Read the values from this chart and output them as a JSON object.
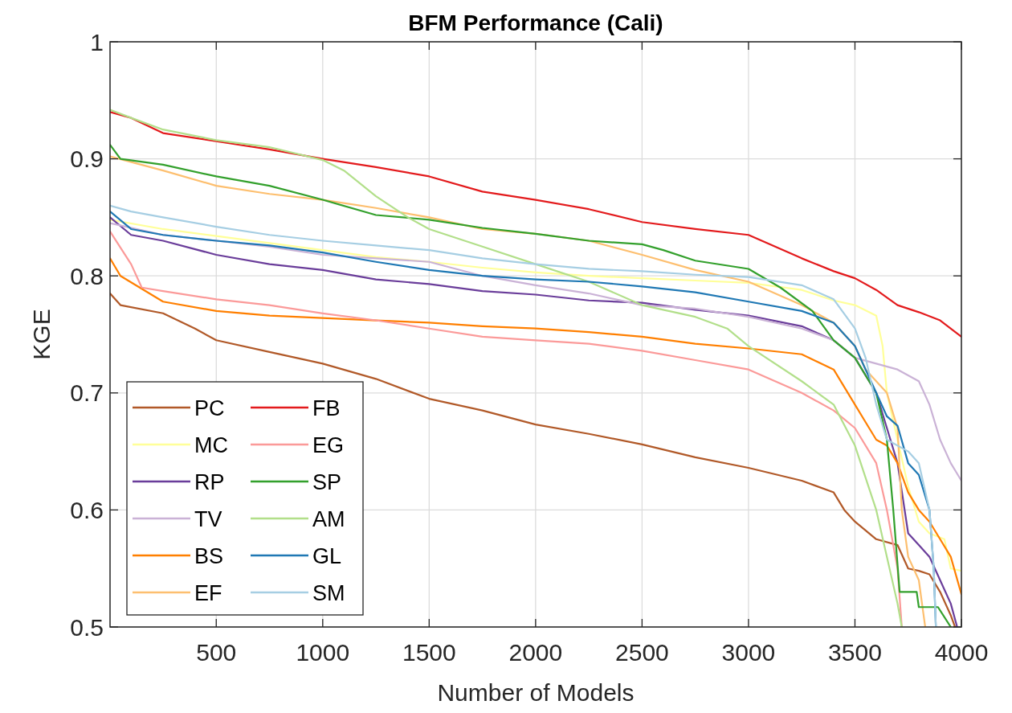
{
  "chart_data": {
    "type": "line",
    "title": "BFM Performance (Cali)",
    "xlabel": "Number of Models",
    "ylabel": "KGE",
    "xlim": [
      1,
      4000
    ],
    "xticks": [
      500,
      1000,
      1500,
      2000,
      2500,
      3000,
      3500,
      4000
    ],
    "ylim": [
      0.5,
      1
    ],
    "yticks": [
      0.5,
      0.6,
      0.7,
      0.8,
      0.9,
      1
    ],
    "grid": true,
    "legend": "bottom left",
    "line_style": "solid",
    "series": [
      {
        "name": "PC",
        "color": "#b15928",
        "x": [
          1,
          50,
          250,
          400,
          500,
          750,
          1000,
          1250,
          1500,
          1750,
          2000,
          2250,
          2500,
          2750,
          3000,
          3250,
          3400,
          3450,
          3500,
          3600,
          3700,
          3750,
          3800,
          3850,
          3900,
          3950,
          3970
        ],
        "values": [
          0.785,
          0.775,
          0.768,
          0.755,
          0.745,
          0.735,
          0.725,
          0.712,
          0.695,
          0.685,
          0.673,
          0.665,
          0.656,
          0.645,
          0.636,
          0.625,
          0.615,
          0.6,
          0.59,
          0.575,
          0.57,
          0.55,
          0.548,
          0.545,
          0.53,
          0.51,
          0.5
        ]
      },
      {
        "name": "MC",
        "color": "#ffff99",
        "x": [
          1,
          250,
          500,
          750,
          1000,
          1250,
          1500,
          1750,
          2000,
          2250,
          2500,
          2750,
          3000,
          3250,
          3400,
          3500,
          3600,
          3630,
          3650,
          3700,
          3750,
          3800,
          3850,
          3920,
          3950,
          4000
        ],
        "values": [
          0.848,
          0.84,
          0.834,
          0.828,
          0.822,
          0.816,
          0.812,
          0.807,
          0.803,
          0.8,
          0.798,
          0.796,
          0.794,
          0.788,
          0.779,
          0.775,
          0.766,
          0.74,
          0.7,
          0.66,
          0.62,
          0.59,
          0.58,
          0.575,
          0.55,
          0.548
        ]
      },
      {
        "name": "RP",
        "color": "#6a3d9a",
        "x": [
          1,
          100,
          250,
          500,
          750,
          1000,
          1250,
          1500,
          1750,
          2000,
          2250,
          2500,
          2750,
          3000,
          3250,
          3400,
          3500,
          3600,
          3650,
          3700,
          3750,
          3800,
          3850,
          3900,
          3950,
          3980
        ],
        "values": [
          0.85,
          0.835,
          0.83,
          0.818,
          0.81,
          0.805,
          0.797,
          0.793,
          0.787,
          0.784,
          0.779,
          0.777,
          0.771,
          0.766,
          0.757,
          0.745,
          0.73,
          0.7,
          0.67,
          0.64,
          0.58,
          0.57,
          0.56,
          0.54,
          0.52,
          0.5
        ]
      },
      {
        "name": "TV",
        "color": "#cab2d6",
        "x": [
          1,
          250,
          500,
          750,
          1000,
          1250,
          1500,
          1750,
          2000,
          2250,
          2500,
          2750,
          3000,
          3250,
          3400,
          3500,
          3600,
          3700,
          3800,
          3850,
          3900,
          3950,
          4000
        ],
        "values": [
          0.845,
          0.835,
          0.83,
          0.825,
          0.818,
          0.815,
          0.812,
          0.8,
          0.792,
          0.785,
          0.775,
          0.772,
          0.765,
          0.755,
          0.745,
          0.73,
          0.725,
          0.72,
          0.71,
          0.69,
          0.66,
          0.64,
          0.625
        ]
      },
      {
        "name": "BS",
        "color": "#ff7f00",
        "x": [
          1,
          50,
          250,
          500,
          750,
          1000,
          1250,
          1500,
          1750,
          2000,
          2250,
          2500,
          2750,
          3000,
          3250,
          3400,
          3500,
          3550,
          3600,
          3650,
          3700,
          3750,
          3800,
          3850,
          3900,
          3950,
          4000
        ],
        "values": [
          0.815,
          0.8,
          0.778,
          0.77,
          0.766,
          0.764,
          0.762,
          0.76,
          0.757,
          0.755,
          0.752,
          0.748,
          0.742,
          0.738,
          0.733,
          0.72,
          0.69,
          0.675,
          0.66,
          0.655,
          0.64,
          0.615,
          0.6,
          0.59,
          0.575,
          0.56,
          0.528
        ]
      },
      {
        "name": "EF",
        "color": "#fdbf6f",
        "x": [
          1,
          250,
          500,
          750,
          1000,
          1250,
          1500,
          1750,
          2000,
          2250,
          2500,
          2750,
          3000,
          3250,
          3400,
          3500,
          3550,
          3600,
          3650,
          3700,
          3720,
          3750,
          3800,
          3830
        ],
        "values": [
          0.902,
          0.89,
          0.877,
          0.87,
          0.865,
          0.858,
          0.85,
          0.84,
          0.836,
          0.83,
          0.818,
          0.805,
          0.795,
          0.775,
          0.76,
          0.74,
          0.72,
          0.71,
          0.7,
          0.67,
          0.6,
          0.56,
          0.54,
          0.5
        ]
      },
      {
        "name": "FB",
        "color": "#e31a1c",
        "x": [
          1,
          100,
          250,
          500,
          750,
          1000,
          1250,
          1500,
          1750,
          2000,
          2250,
          2500,
          2750,
          3000,
          3250,
          3400,
          3500,
          3600,
          3700,
          3800,
          3900,
          4000
        ],
        "values": [
          0.94,
          0.935,
          0.922,
          0.915,
          0.908,
          0.9,
          0.893,
          0.885,
          0.872,
          0.865,
          0.857,
          0.846,
          0.84,
          0.835,
          0.815,
          0.804,
          0.798,
          0.788,
          0.775,
          0.769,
          0.762,
          0.748
        ]
      },
      {
        "name": "EG",
        "color": "#fb9a99",
        "x": [
          1,
          100,
          150,
          250,
          500,
          750,
          1000,
          1250,
          1500,
          1750,
          2000,
          2250,
          2500,
          2750,
          3000,
          3250,
          3400,
          3500,
          3600,
          3650,
          3700,
          3720
        ],
        "values": [
          0.838,
          0.81,
          0.79,
          0.787,
          0.78,
          0.775,
          0.768,
          0.762,
          0.755,
          0.748,
          0.745,
          0.742,
          0.736,
          0.728,
          0.72,
          0.7,
          0.685,
          0.67,
          0.64,
          0.6,
          0.55,
          0.5
        ]
      },
      {
        "name": "SP",
        "color": "#33a02c",
        "x": [
          1,
          50,
          250,
          500,
          750,
          1000,
          1250,
          1500,
          1750,
          2000,
          2250,
          2500,
          2600,
          2750,
          3000,
          3150,
          3300,
          3400,
          3500,
          3550,
          3600,
          3650,
          3680,
          3710,
          3790,
          3800,
          3890,
          3950
        ],
        "values": [
          0.912,
          0.9,
          0.895,
          0.885,
          0.877,
          0.865,
          0.852,
          0.848,
          0.841,
          0.836,
          0.83,
          0.827,
          0.822,
          0.813,
          0.806,
          0.79,
          0.77,
          0.745,
          0.73,
          0.715,
          0.7,
          0.66,
          0.6,
          0.53,
          0.53,
          0.517,
          0.517,
          0.5
        ]
      },
      {
        "name": "AM",
        "color": "#b2df8a",
        "x": [
          1,
          100,
          250,
          500,
          750,
          1000,
          1100,
          1250,
          1400,
          1500,
          1750,
          2000,
          2250,
          2500,
          2750,
          2900,
          3000,
          3250,
          3400,
          3500,
          3600,
          3650,
          3700,
          3720
        ],
        "values": [
          0.942,
          0.935,
          0.925,
          0.916,
          0.91,
          0.899,
          0.89,
          0.868,
          0.85,
          0.84,
          0.825,
          0.81,
          0.795,
          0.775,
          0.765,
          0.755,
          0.74,
          0.71,
          0.69,
          0.655,
          0.6,
          0.56,
          0.52,
          0.5
        ]
      },
      {
        "name": "GL",
        "color": "#1f78b4",
        "x": [
          1,
          100,
          250,
          500,
          750,
          1000,
          1250,
          1500,
          1750,
          2000,
          2250,
          2500,
          2750,
          3000,
          3250,
          3400,
          3500,
          3550,
          3600,
          3650,
          3700,
          3750,
          3800,
          3850,
          3870,
          3880
        ],
        "values": [
          0.855,
          0.84,
          0.835,
          0.83,
          0.826,
          0.82,
          0.812,
          0.805,
          0.8,
          0.797,
          0.795,
          0.791,
          0.786,
          0.778,
          0.77,
          0.76,
          0.74,
          0.72,
          0.7,
          0.68,
          0.672,
          0.64,
          0.63,
          0.6,
          0.55,
          0.5
        ]
      },
      {
        "name": "SM",
        "color": "#a6cee3",
        "x": [
          1,
          100,
          250,
          500,
          750,
          1000,
          1250,
          1500,
          1750,
          2000,
          2250,
          2500,
          2750,
          3000,
          3250,
          3400,
          3500,
          3550,
          3600,
          3650,
          3750,
          3800,
          3850,
          3870,
          3880
        ],
        "values": [
          0.86,
          0.855,
          0.85,
          0.842,
          0.835,
          0.83,
          0.826,
          0.822,
          0.815,
          0.81,
          0.806,
          0.804,
          0.801,
          0.799,
          0.792,
          0.78,
          0.755,
          0.73,
          0.69,
          0.66,
          0.65,
          0.64,
          0.6,
          0.55,
          0.5
        ]
      }
    ]
  }
}
